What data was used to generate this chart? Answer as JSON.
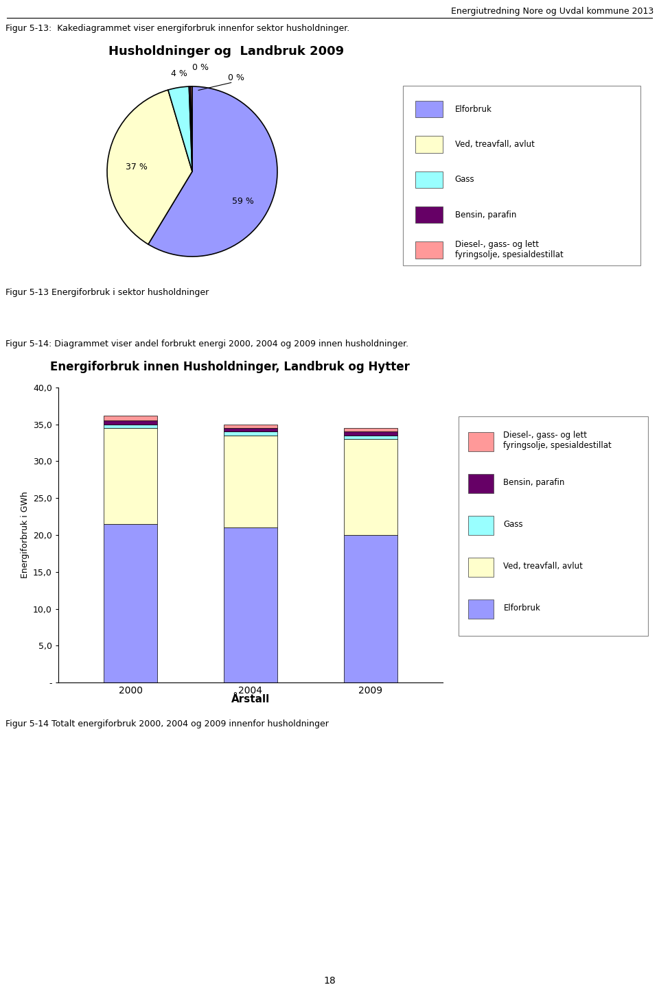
{
  "header_right": "Energiutredning Nore og Uvdal kommune 2013",
  "fig13_caption": "Figur 5-13:  Kakediagrammet viser energiforbruk innenfor sektor husholdninger.",
  "pie_title": "Husholdninger og  Landbruk 2009",
  "pie_values": [
    59,
    37,
    4,
    0.3,
    0.3
  ],
  "pie_labels": [
    "59 %",
    "37 %",
    "4 %",
    "0 %",
    "0 %"
  ],
  "pie_colors": [
    "#9999FF",
    "#FFFFCC",
    "#99FFFF",
    "#660066",
    "#FF9999"
  ],
  "pie_legend_labels": [
    "Elforbruk",
    "Ved, treavfall, avlut",
    "Gass",
    "Bensin, parafin",
    "Diesel-, gass- og lett\nfyringsolje, spesialdestillat"
  ],
  "pie_legend_colors": [
    "#9999FF",
    "#FFFFCC",
    "#99FFFF",
    "#660066",
    "#FF9999"
  ],
  "fig13_sub_caption": "Figur 5-13 Energiforbruk i sektor husholdninger",
  "fig14_caption": "Figur 5-14: Diagrammet viser andel forbrukt energi 2000, 2004 og 2009 innen husholdninger.",
  "bar_title": "Energiforbruk innen Husholdninger, Landbruk og Hytter",
  "bar_years": [
    "2000",
    "2004",
    "2009"
  ],
  "bar_elforbruk": [
    21.5,
    21.0,
    20.0
  ],
  "bar_ved": [
    13.0,
    12.5,
    13.0
  ],
  "bar_gass": [
    0.5,
    0.5,
    0.5
  ],
  "bar_bensin": [
    0.5,
    0.5,
    0.5
  ],
  "bar_diesel": [
    0.7,
    0.5,
    0.5
  ],
  "bar_colors_elforbruk": "#9999FF",
  "bar_colors_ved": "#FFFFCC",
  "bar_colors_gass": "#99FFFF",
  "bar_colors_bensin": "#660066",
  "bar_colors_diesel": "#FF9999",
  "bar_ylabel": "Energiforbruk i GWh",
  "bar_xlabel": "Årstall",
  "bar_ylim": [
    0,
    40.0
  ],
  "bar_yticks": [
    0,
    5.0,
    10.0,
    15.0,
    20.0,
    25.0,
    30.0,
    35.0,
    40.0
  ],
  "bar_ytick_labels": [
    "-",
    "5,0",
    "10,0",
    "15,0",
    "20,0",
    "25,0",
    "30,0",
    "35,0",
    "40,0"
  ],
  "bar_legend_labels": [
    "Diesel-, gass- og lett\nfyringsolje, spesialdestillat",
    "Bensin, parafin",
    "Gass",
    "Ved, treavfall, avlut",
    "Elforbruk"
  ],
  "bar_legend_colors": [
    "#FF9999",
    "#660066",
    "#99FFFF",
    "#FFFFCC",
    "#9999FF"
  ],
  "fig14_sub_caption": "Figur 5-14 Totalt energiforbruk 2000, 2004 og 2009 innenfor husholdninger",
  "page_number": "18"
}
